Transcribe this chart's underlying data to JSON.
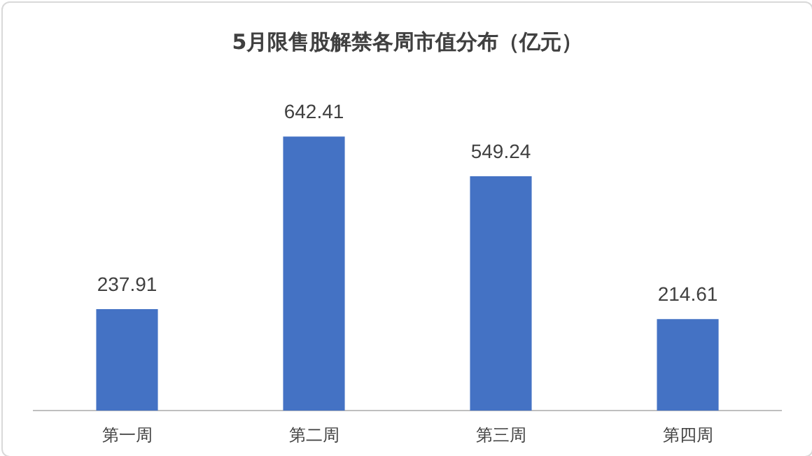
{
  "chart_data": {
    "type": "bar",
    "title": "5月限售股解禁各周市值分布（亿元）",
    "categories": [
      "第一周",
      "第二周",
      "第三周",
      "第四周"
    ],
    "values": [
      237.91,
      642.41,
      549.24,
      214.61
    ],
    "color": "#4472c4",
    "data_labels": true,
    "grid": false,
    "legend": false,
    "tick_labels": "x"
  }
}
